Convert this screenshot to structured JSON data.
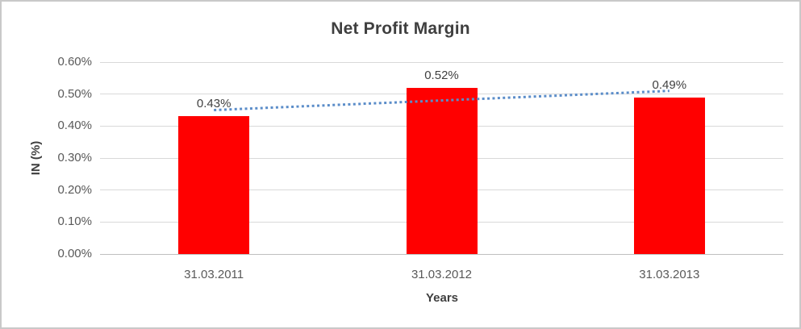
{
  "chart_data": {
    "type": "bar",
    "title": "Net Profit Margin",
    "xlabel": "Years",
    "ylabel": "IN (%)",
    "categories": [
      "31.03.2011",
      "31.03.2012",
      "31.03.2013"
    ],
    "values": [
      0.43,
      0.52,
      0.49
    ],
    "data_labels": [
      "0.43%",
      "0.52%",
      "0.49%"
    ],
    "ylim": [
      0,
      0.6
    ],
    "ytick_step": 0.1,
    "ytick_labels": [
      "0.00%",
      "0.10%",
      "0.20%",
      "0.30%",
      "0.40%",
      "0.50%",
      "0.60%"
    ],
    "grid": true,
    "legend": "none",
    "trendline": {
      "type": "linear",
      "style": "dotted"
    },
    "colors": {
      "bar": "#FF0000",
      "trendline": "#5B8DC9",
      "gridline": "#D9D9D9",
      "axis_line": "#BFBFBF",
      "tick_text": "#595959",
      "label_text": "#404040",
      "title_text": "#3F3F3F",
      "border": "#C9C9C9",
      "background": "#FFFFFF"
    }
  }
}
